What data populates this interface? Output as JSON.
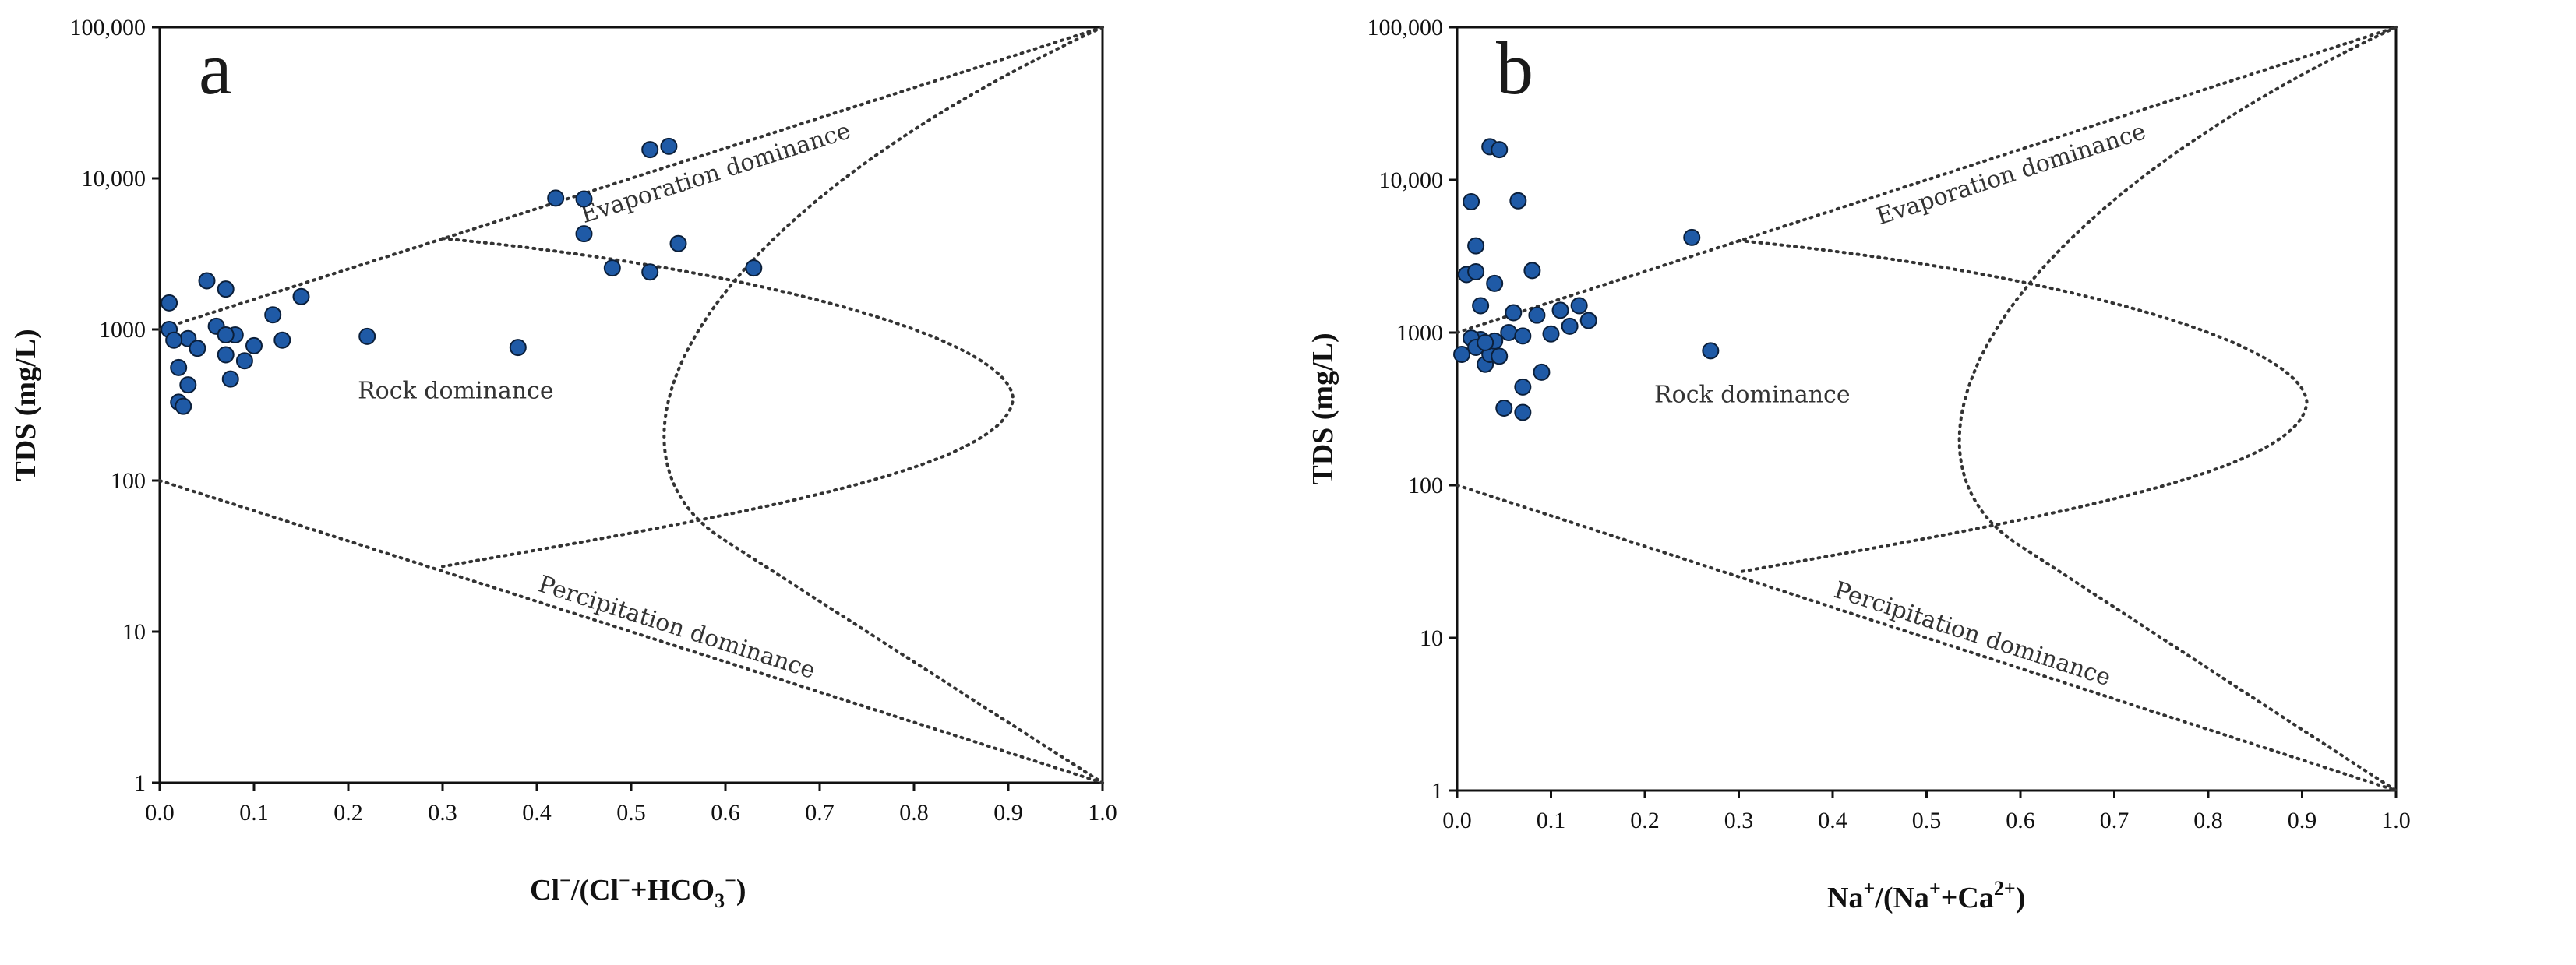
{
  "chart_data": [
    {
      "type": "scatter",
      "panel_label": "a",
      "title": "",
      "xlabel": {
        "base": "Cl",
        "sup1": "−",
        "mid1": "/(Cl",
        "sup2": "−",
        "mid2": "+HCO",
        "sub": "3",
        "sup3": "−",
        "end": ")"
      },
      "ylabel": "TDS (mg/L)",
      "xlim": [
        0.0,
        1.0
      ],
      "ylim": [
        1,
        100000
      ],
      "yscale": "log",
      "xticks": [
        "0.0",
        "0.1",
        "0.2",
        "0.3",
        "0.4",
        "0.5",
        "0.6",
        "0.7",
        "0.8",
        "0.9",
        "1.0"
      ],
      "yticks": [
        "1",
        "10",
        "100",
        "1000",
        "10,000",
        "100,000"
      ],
      "regions": [
        "Evaporation dominance",
        "Rock dominance",
        "Percipitation dominance"
      ],
      "x": [
        0.01,
        0.01,
        0.02,
        0.02,
        0.025,
        0.03,
        0.03,
        0.04,
        0.05,
        0.06,
        0.07,
        0.07,
        0.075,
        0.08,
        0.09,
        0.1,
        0.12,
        0.13,
        0.15,
        0.22,
        0.38,
        0.42,
        0.45,
        0.45,
        0.48,
        0.52,
        0.52,
        0.54,
        0.55,
        0.63,
        0.07,
        0.015
      ],
      "y": [
        1500,
        1000,
        560,
        330,
        310,
        430,
        870,
        750,
        2100,
        1050,
        680,
        1850,
        470,
        920,
        620,
        780,
        1250,
        850,
        1650,
        900,
        760,
        7400,
        7300,
        4300,
        2550,
        15500,
        2400,
        16300,
        3700,
        2550,
        920,
        850
      ]
    },
    {
      "type": "scatter",
      "panel_label": "b",
      "title": "",
      "xlabel": {
        "base": "Na",
        "sup1": "+",
        "mid1": "/(Na",
        "sup2": "+",
        "mid2": "+Ca",
        "sup3": "2+",
        "end": ")"
      },
      "ylabel": "TDS (mg/L)",
      "xlim": [
        0.0,
        1.0
      ],
      "ylim": [
        1,
        100000
      ],
      "yscale": "log",
      "xticks": [
        "0.0",
        "0.1",
        "0.2",
        "0.3",
        "0.4",
        "0.5",
        "0.6",
        "0.7",
        "0.8",
        "0.9",
        "1.0"
      ],
      "yticks": [
        "1",
        "10",
        "100",
        "1000",
        "10,000",
        "100,000"
      ],
      "regions": [
        "Evaporation dominance",
        "Rock dominance",
        "Percipitation dominance"
      ],
      "x": [
        0.005,
        0.01,
        0.015,
        0.02,
        0.02,
        0.025,
        0.025,
        0.03,
        0.035,
        0.035,
        0.04,
        0.04,
        0.045,
        0.045,
        0.05,
        0.055,
        0.06,
        0.065,
        0.07,
        0.07,
        0.07,
        0.08,
        0.085,
        0.09,
        0.1,
        0.11,
        0.12,
        0.13,
        0.14,
        0.25,
        0.27,
        0.015,
        0.02,
        0.03
      ],
      "y": [
        720,
        2400,
        7200,
        2500,
        3700,
        1500,
        900,
        620,
        720,
        16500,
        2100,
        880,
        15800,
        700,
        320,
        1000,
        1350,
        7300,
        440,
        300,
        950,
        2550,
        1300,
        550,
        980,
        1400,
        1100,
        1500,
        1200,
        4200,
        760,
        920,
        800,
        860
      ]
    }
  ]
}
